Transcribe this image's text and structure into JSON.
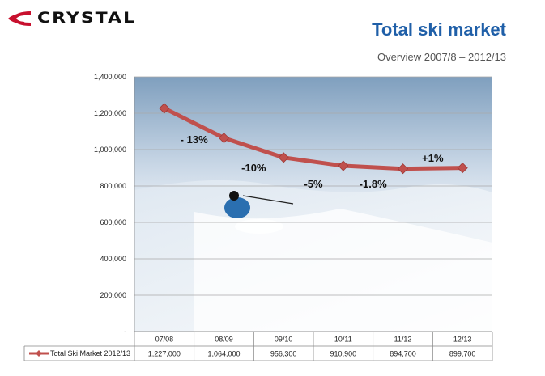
{
  "header": {
    "logo_text": "CRYSTAL",
    "title": "Total ski market",
    "subtitle": "Overview 2007/8 – 2012/13"
  },
  "colors": {
    "title": "#1f5fa8",
    "series_line": "#c0504d",
    "logo_red": "#c8102e"
  },
  "chart_data": {
    "type": "line",
    "categories": [
      "07/08",
      "08/09",
      "09/10",
      "10/11",
      "11/12",
      "12/13"
    ],
    "series": [
      {
        "name": "Total Ski Market 2012/13",
        "values": [
          1227000,
          1064000,
          956300,
          910900,
          894700,
          899700
        ],
        "labels": [
          "1,227,000",
          "1,064,000",
          "956,300",
          "910,900",
          "894,700",
          "899,700"
        ]
      }
    ],
    "yticks": [
      "-",
      "200,000",
      "400,000",
      "600,000",
      "800,000",
      "1,000,000",
      "1,200,000",
      "1,400,000"
    ],
    "ylim": [
      0,
      1400000
    ],
    "grid": true,
    "legend": "data-table-below",
    "annotations": [
      "- 13%",
      "-10%",
      "-5%",
      "-1.8%",
      "+1%"
    ],
    "background_image": "skier-in-powder-snow"
  }
}
